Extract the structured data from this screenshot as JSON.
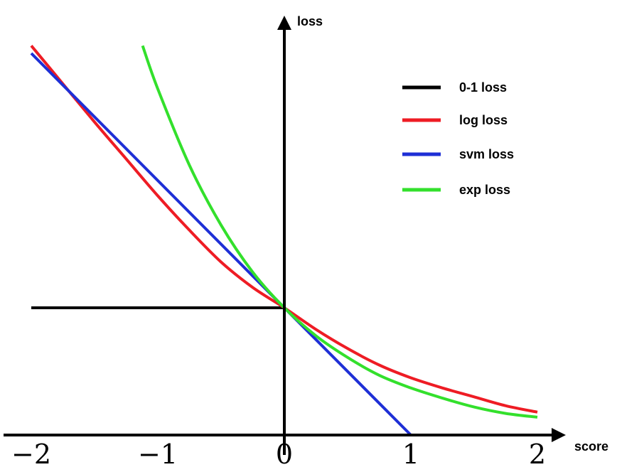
{
  "chart_data": {
    "type": "line",
    "title": "",
    "xlabel": "score",
    "ylabel": "loss",
    "xlim": [
      -2.2,
      2.2
    ],
    "ylim": [
      0,
      3.1
    ],
    "x_ticks": [
      {
        "value": -2,
        "label": "−2"
      },
      {
        "value": -1,
        "label": "−1"
      },
      {
        "value": 0,
        "label": "0"
      },
      {
        "value": 1,
        "label": "1"
      },
      {
        "value": 2,
        "label": "2"
      }
    ],
    "grid": false,
    "legend": "top-right",
    "series": [
      {
        "name": "0-1 loss",
        "color": "#000000",
        "x": [
          -2,
          0,
          0,
          2
        ],
        "y": [
          1,
          1,
          0,
          0
        ]
      },
      {
        "name": "log loss",
        "color": "#ee1c24",
        "x": [
          -2,
          -1.75,
          -1.5,
          -1.25,
          -1,
          -0.75,
          -0.5,
          -0.25,
          0,
          0.25,
          0.5,
          0.75,
          1,
          1.25,
          1.5,
          1.75,
          2
        ],
        "y": [
          3.06,
          2.76,
          2.46,
          2.17,
          1.88,
          1.61,
          1.36,
          1.16,
          1.0,
          0.83,
          0.68,
          0.55,
          0.45,
          0.37,
          0.3,
          0.23,
          0.18
        ]
      },
      {
        "name": "svm loss",
        "color": "#1e2fd6",
        "x": [
          -2,
          1,
          2
        ],
        "y": [
          3,
          0,
          0
        ]
      },
      {
        "name": "exp loss",
        "color": "#33e02c",
        "x": [
          -1.12,
          -1,
          -0.75,
          -0.5,
          -0.25,
          0,
          0.25,
          0.5,
          0.75,
          1,
          1.25,
          1.5,
          1.75,
          2
        ],
        "y": [
          3.06,
          2.72,
          2.12,
          1.65,
          1.28,
          1.0,
          0.78,
          0.61,
          0.47,
          0.37,
          0.29,
          0.22,
          0.17,
          0.14
        ]
      }
    ]
  }
}
